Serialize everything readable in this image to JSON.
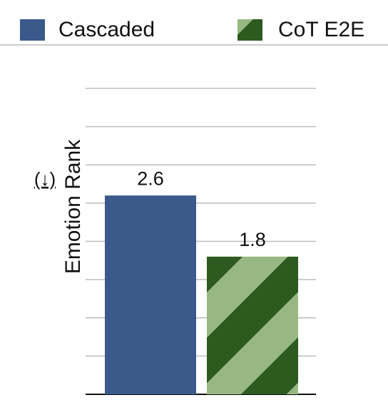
{
  "chart_data": {
    "type": "bar",
    "ylabel": "Emotion Rank",
    "ylabel_note": "(↓)",
    "series": [
      {
        "name": "Cascaded",
        "color": "#3a5a8b",
        "values": [
          2.6
        ]
      },
      {
        "name": "CoT E2E",
        "color": "#97b882",
        "hatch_color": "#2d5a1f",
        "values": [
          1.8
        ]
      }
    ],
    "ylim": [
      0,
      4
    ],
    "yticks": [
      0,
      0.5,
      1,
      1.5,
      2,
      2.5,
      3,
      3.5,
      4
    ],
    "grid": true,
    "legend": "top"
  }
}
